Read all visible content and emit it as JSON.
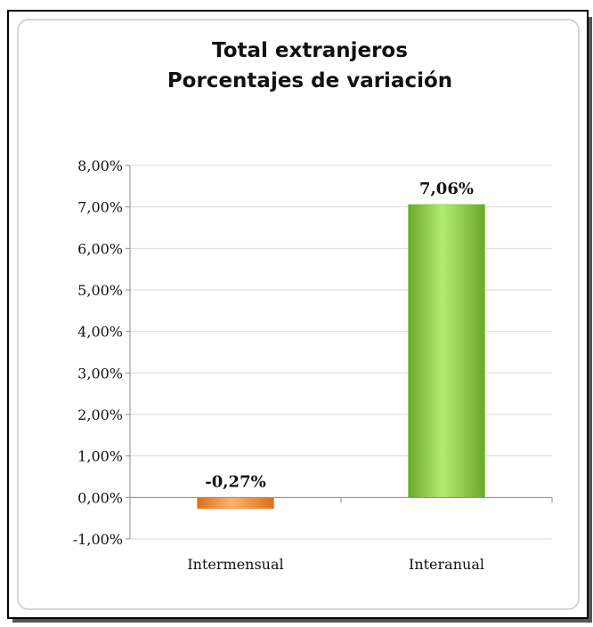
{
  "chart_data": {
    "type": "bar",
    "title": [
      "Total extranjeros",
      "Porcentajes de variación"
    ],
    "categories": [
      "Intermensual",
      "Interanual"
    ],
    "values": [
      -0.27,
      7.06
    ],
    "data_labels": [
      "-0,27%",
      "7,06%"
    ],
    "ylim": [
      -1,
      8
    ],
    "yticks": [
      8,
      7,
      6,
      5,
      4,
      3,
      2,
      1,
      0,
      -1
    ],
    "ytick_labels": [
      "8,00%",
      "7,00%",
      "6,00%",
      "5,00%",
      "4,00%",
      "3,00%",
      "2,00%",
      "1,00%",
      "0,00%",
      "-1,00%"
    ],
    "grid": true,
    "legend": "none",
    "bar_colors": [
      "#f0923e",
      "#8cc63f"
    ]
  }
}
